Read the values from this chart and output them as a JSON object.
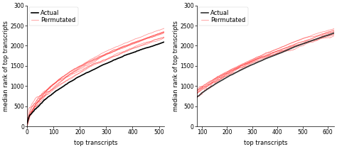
{
  "panel1": {
    "xlim": [
      0,
      520
    ],
    "ylim": [
      0,
      3000
    ],
    "xticks": [
      0,
      100,
      200,
      300,
      400,
      500
    ],
    "yticks": [
      0,
      500,
      1000,
      1500,
      2000,
      2500,
      3000
    ],
    "xlabel": "top transcripts",
    "ylabel": "median rank of top transcripts",
    "actual_color": "#000000",
    "perm_color": "#ff3333",
    "n_perm": 9,
    "x_start": 1,
    "x_end": 520,
    "actual_scale": 2100,
    "actual_power": 0.55,
    "perm_scale": 2300,
    "perm_power": 0.5,
    "perm_spread": 0.06,
    "legend_actual": "Actual",
    "legend_perm": "Permutated"
  },
  "panel2": {
    "xlim": [
      80,
      625
    ],
    "ylim": [
      0,
      3000
    ],
    "xticks": [
      100,
      200,
      300,
      400,
      500,
      600
    ],
    "yticks": [
      0,
      500,
      1000,
      1500,
      2000,
      2500,
      3000
    ],
    "xlabel": "top transcripts",
    "ylabel": "median rank of top transcripts",
    "actual_color": "#333333",
    "perm_color": "#ff3333",
    "n_perm": 9,
    "x_start": 80,
    "x_end": 625,
    "actual_scale": 2300,
    "actual_power": 0.55,
    "perm_scale": 2350,
    "perm_power": 0.5,
    "perm_spread": 0.06,
    "legend_actual": "Actual",
    "legend_perm": "Permutated"
  },
  "fig_width": 4.74,
  "fig_height": 2.1,
  "dpi": 100,
  "background_color": "#ffffff",
  "font_size": 6,
  "legend_fontsize": 6,
  "tick_fontsize": 5.5,
  "linewidth_actual": 1.2,
  "linewidth_perm": 0.55
}
